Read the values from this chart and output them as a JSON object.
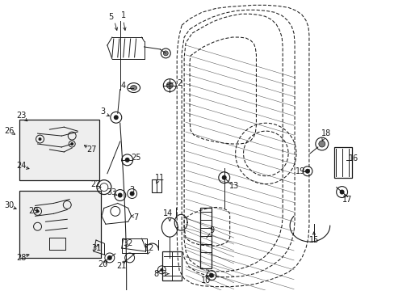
{
  "bg_color": "#ffffff",
  "fig_width": 4.89,
  "fig_height": 3.6,
  "dpi": 100,
  "line_color": "#1a1a1a",
  "box_fill": "#e8e8e8",
  "door_fill": "#ffffff"
}
